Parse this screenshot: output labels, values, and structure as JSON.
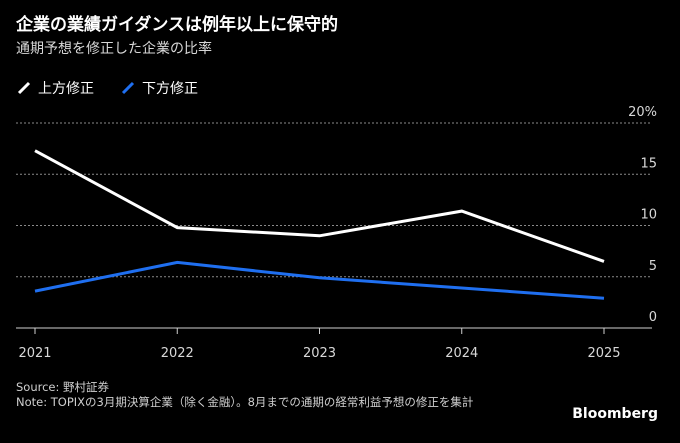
{
  "header": {
    "title": "企業の業績ガイダンスは例年以上に保守的",
    "subtitle": "通期予想を修正した企業の比率"
  },
  "footer": {
    "source": "Source: 野村証券",
    "note": "Note: TOPIXの3月期決算企業（除く金融）。8月までの通期の経常利益予想の修正を集計",
    "brand": "Bloomberg"
  },
  "colors": {
    "background": "#000000",
    "upward": "#ffffff",
    "downward": "#1f6ff0",
    "grid": "#8a8a8a"
  },
  "chart_data": {
    "type": "line",
    "title": "企業の業績ガイダンスは例年以上に保守的",
    "subtitle": "通期予想を修正した企業の比率",
    "x": [
      "2021",
      "2022",
      "2023",
      "2024",
      "2025"
    ],
    "series": [
      {
        "name": "上方修正",
        "color": "#ffffff",
        "values": [
          17.3,
          9.8,
          9.0,
          11.4,
          6.5
        ]
      },
      {
        "name": "下方修正",
        "color": "#1f6ff0",
        "values": [
          3.6,
          6.4,
          4.9,
          3.9,
          2.9
        ]
      }
    ],
    "yticks": [
      "0",
      "5",
      "10",
      "15",
      "20%"
    ],
    "ylim": [
      0,
      20
    ],
    "grid": true,
    "legend": "top-left"
  }
}
